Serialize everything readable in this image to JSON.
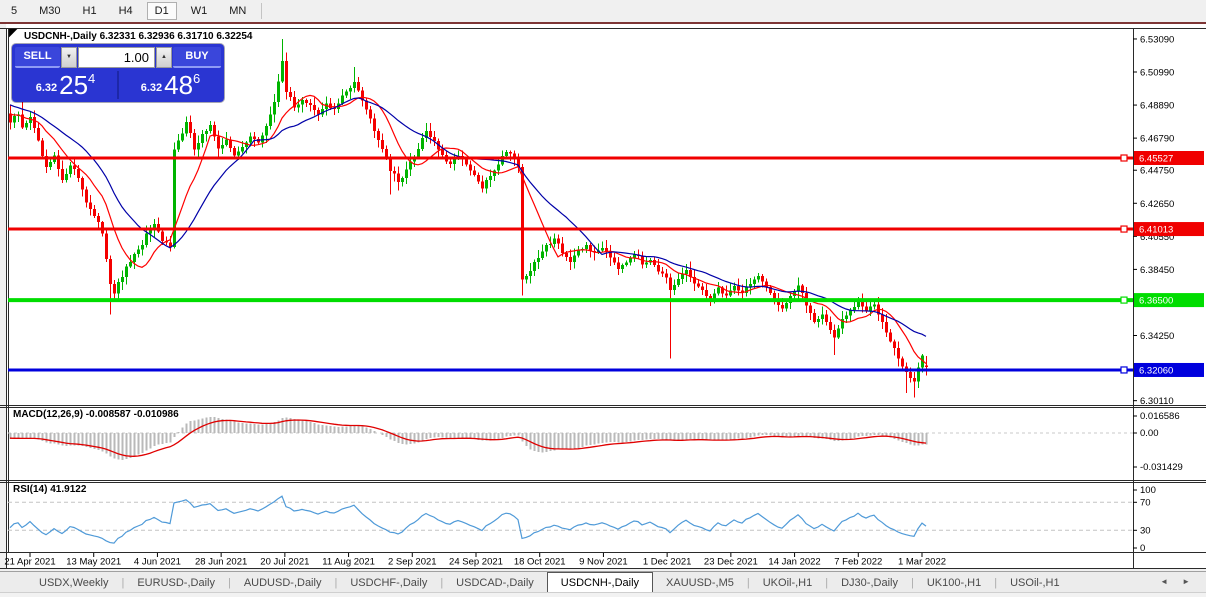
{
  "toolbar": {
    "timeframes": [
      "5",
      "M30",
      "H1",
      "H4",
      "D1",
      "W1",
      "MN"
    ],
    "active": "D1"
  },
  "icons": {
    "spinner_down": "▼",
    "spinner_up": "▲",
    "nav_left": "◄",
    "nav_right": "►",
    "corner_triangle": "◤",
    "tab_separator": "|"
  },
  "chart_header": {
    "info": "USDCNH-,Daily 6.32331 6.32936 6.31710 6.32254"
  },
  "trade_panel": {
    "sell_label": "SELL",
    "buy_label": "BUY",
    "volume": "1.00",
    "sell_price": {
      "base": "6.32",
      "pips": "25",
      "pt": "4"
    },
    "buy_price": {
      "base": "6.32",
      "pips": "48",
      "pt": "6"
    }
  },
  "indicator_labels": {
    "macd": "MACD(12,26,9) -0.008587 -0.010986",
    "rsi": "RSI(14) 41.9122"
  },
  "tabs": {
    "items": [
      "USDX,Weekly",
      "EURUSD-,Daily",
      "AUDUSD-,Daily",
      "USDCHF-,Daily",
      "USDCAD-,Daily",
      "USDCNH-,Daily",
      "XAUUSD-,M5",
      "UKOil-,H1",
      "DJ30-,Daily",
      "UK100-,H1",
      "USOil-,H1"
    ],
    "active_index": 5
  },
  "chart_data": {
    "type": "candlestick",
    "symbol": "USDCNH-",
    "period": "Daily",
    "ohlc_readout": {
      "open": 6.32331,
      "high": 6.32936,
      "low": 6.3171,
      "close": 6.32254
    },
    "x_axis_labels": [
      "21 Apr 2021",
      "13 May 2021",
      "4 Jun 2021",
      "28 Jun 2021",
      "20 Jul 2021",
      "11 Aug 2021",
      "2 Sep 2021",
      "24 Sep 2021",
      "18 Oct 2021",
      "9 Nov 2021",
      "1 Dec 2021",
      "23 Dec 2021",
      "14 Jan 2022",
      "7 Feb 2022",
      "1 Mar 2022"
    ],
    "y_axis_ticks": [
      "6.53090",
      "6.50990",
      "6.48890",
      "6.46790",
      "6.44750",
      "6.42650",
      "6.40550",
      "6.38450",
      "6.34250",
      "6.30110"
    ],
    "visible_price_range": [
      6.296,
      6.539
    ],
    "levels": [
      {
        "price": 6.45527,
        "label": "6.45527",
        "color": "#f00000",
        "width": 3
      },
      {
        "price": 6.41013,
        "label": "6.41013",
        "color": "#f00000",
        "width": 3
      },
      {
        "price": 6.365,
        "label": "6.36500",
        "color": "#00dd00",
        "width": 4
      },
      {
        "price": 6.3206,
        "label": "6.32060",
        "color": "#0000dd",
        "width": 3
      }
    ],
    "moving_averages": [
      {
        "name": "fast-ma",
        "period": 10,
        "color": "#ff0000"
      },
      {
        "name": "slow-ma",
        "period": 21,
        "color": "#0000a8"
      }
    ],
    "candle_colors": {
      "up": "#00b400",
      "down": "#f40000"
    },
    "bars_total": 230,
    "close_keyframes": [
      [
        0,
        6.478
      ],
      [
        2,
        6.483
      ],
      [
        3,
        6.474
      ],
      [
        5,
        6.482
      ],
      [
        7,
        6.465
      ],
      [
        9,
        6.448
      ],
      [
        11,
        6.456
      ],
      [
        13,
        6.44
      ],
      [
        15,
        6.452
      ],
      [
        17,
        6.443
      ],
      [
        19,
        6.428
      ],
      [
        21,
        6.418
      ],
      [
        23,
        6.408
      ],
      [
        24,
        6.392
      ],
      [
        25,
        6.376
      ],
      [
        26,
        6.37
      ],
      [
        28,
        6.38
      ],
      [
        30,
        6.39
      ],
      [
        32,
        6.396
      ],
      [
        34,
        6.406
      ],
      [
        36,
        6.412
      ],
      [
        38,
        6.402
      ],
      [
        40,
        6.4
      ],
      [
        41,
        6.462
      ],
      [
        43,
        6.47
      ],
      [
        44,
        6.478
      ],
      [
        46,
        6.462
      ],
      [
        48,
        6.47
      ],
      [
        50,
        6.476
      ],
      [
        52,
        6.46
      ],
      [
        54,
        6.468
      ],
      [
        56,
        6.456
      ],
      [
        58,
        6.462
      ],
      [
        60,
        6.47
      ],
      [
        62,
        6.464
      ],
      [
        64,
        6.476
      ],
      [
        66,
        6.49
      ],
      [
        68,
        6.518
      ],
      [
        69,
        6.498
      ],
      [
        71,
        6.487
      ],
      [
        73,
        6.493
      ],
      [
        75,
        6.488
      ],
      [
        77,
        6.482
      ],
      [
        79,
        6.49
      ],
      [
        81,
        6.486
      ],
      [
        83,
        6.494
      ],
      [
        85,
        6.5
      ],
      [
        86,
        6.505
      ],
      [
        88,
        6.493
      ],
      [
        90,
        6.48
      ],
      [
        92,
        6.468
      ],
      [
        94,
        6.456
      ],
      [
        95,
        6.448
      ],
      [
        97,
        6.44
      ],
      [
        99,
        6.448
      ],
      [
        101,
        6.456
      ],
      [
        103,
        6.468
      ],
      [
        104,
        6.473
      ],
      [
        106,
        6.466
      ],
      [
        108,
        6.456
      ],
      [
        110,
        6.45
      ],
      [
        112,
        6.458
      ],
      [
        114,
        6.45
      ],
      [
        116,
        6.444
      ],
      [
        118,
        6.436
      ],
      [
        120,
        6.444
      ],
      [
        122,
        6.452
      ],
      [
        124,
        6.46
      ],
      [
        126,
        6.456
      ],
      [
        127,
        6.45
      ],
      [
        128,
        6.378
      ],
      [
        130,
        6.384
      ],
      [
        132,
        6.392
      ],
      [
        134,
        6.399
      ],
      [
        136,
        6.405
      ],
      [
        138,
        6.396
      ],
      [
        140,
        6.389
      ],
      [
        142,
        6.395
      ],
      [
        144,
        6.4
      ],
      [
        146,
        6.394
      ],
      [
        148,
        6.399
      ],
      [
        150,
        6.393
      ],
      [
        152,
        6.386
      ],
      [
        154,
        6.39
      ],
      [
        156,
        6.395
      ],
      [
        158,
        6.388
      ],
      [
        160,
        6.392
      ],
      [
        162,
        6.384
      ],
      [
        164,
        6.378
      ],
      [
        165,
        6.37
      ],
      [
        167,
        6.378
      ],
      [
        169,
        6.384
      ],
      [
        171,
        6.376
      ],
      [
        173,
        6.37
      ],
      [
        175,
        6.366
      ],
      [
        177,
        6.372
      ],
      [
        179,
        6.368
      ],
      [
        181,
        6.374
      ],
      [
        183,
        6.37
      ],
      [
        185,
        6.376
      ],
      [
        187,
        6.38
      ],
      [
        189,
        6.372
      ],
      [
        191,
        6.366
      ],
      [
        193,
        6.36
      ],
      [
        195,
        6.368
      ],
      [
        197,
        6.374
      ],
      [
        199,
        6.362
      ],
      [
        201,
        6.352
      ],
      [
        203,
        6.356
      ],
      [
        205,
        6.346
      ],
      [
        206,
        6.342
      ],
      [
        208,
        6.352
      ],
      [
        210,
        6.358
      ],
      [
        212,
        6.364
      ],
      [
        214,
        6.358
      ],
      [
        216,
        6.362
      ],
      [
        218,
        6.352
      ],
      [
        220,
        6.34
      ],
      [
        222,
        6.328
      ],
      [
        224,
        6.318
      ],
      [
        226,
        6.314
      ],
      [
        227,
        6.322
      ],
      [
        228,
        6.33
      ],
      [
        229,
        6.32254
      ]
    ],
    "wick_overrides": [
      [
        3,
        null,
        6.494
      ],
      [
        25,
        6.356,
        null
      ],
      [
        68,
        null,
        6.531
      ],
      [
        86,
        null,
        6.513
      ],
      [
        95,
        6.432,
        null
      ],
      [
        128,
        6.368,
        null
      ],
      [
        165,
        6.328,
        null
      ],
      [
        206,
        6.33,
        null
      ],
      [
        224,
        6.306,
        null
      ],
      [
        226,
        6.303,
        null
      ]
    ],
    "prehistory": {
      "bars": 26,
      "from": 6.505,
      "to": 6.48
    },
    "macd": {
      "fast": 12,
      "slow": 26,
      "signal": 9,
      "value": -0.008587,
      "signal_value": -0.010986,
      "axis_labels": [
        "0.016586",
        "0.00",
        "-0.031429"
      ],
      "axis_values": [
        0.016586,
        0,
        -0.031429
      ],
      "histogram_color": "#b9b9b9",
      "signal_color": "#e00000"
    },
    "rsi": {
      "period": 14,
      "value": 41.9122,
      "axis_labels": [
        "100",
        "70",
        "30",
        "0"
      ],
      "axis_values": [
        100,
        70,
        30,
        0
      ],
      "dashed_levels": [
        70,
        30
      ],
      "color": "#4f9ad8"
    }
  }
}
